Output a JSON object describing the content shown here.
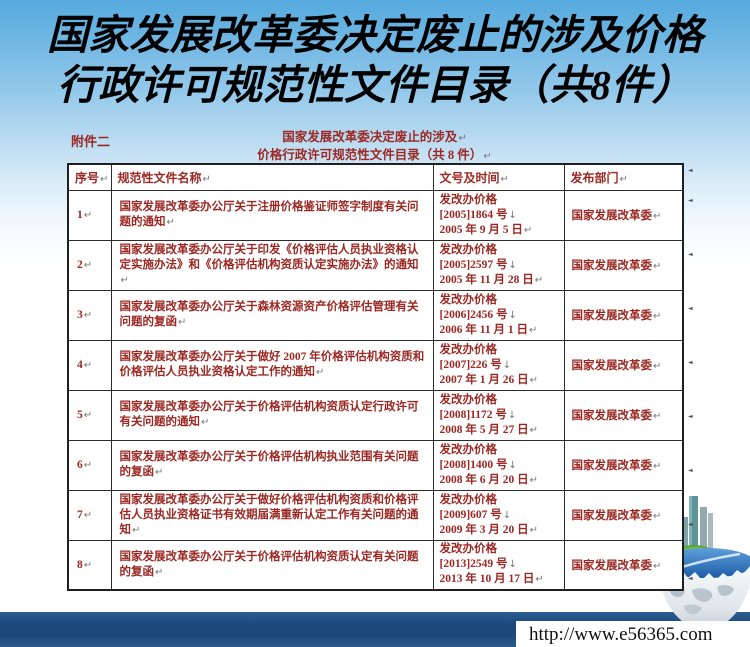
{
  "slide_title": {
    "line1": "国家发展改革委决定废止的涉及价格",
    "line2": "行政许可规范性文件目录（共8件）"
  },
  "document": {
    "attachment_label": "附件二",
    "title_line1": "国家发展改革委决定废止的涉及",
    "title_line2": "价格行政许可规范性文件目录（共 8 件）",
    "table": {
      "headers": [
        "序号",
        "规范性文件名称",
        "文号及时间",
        "发布部门"
      ],
      "rows": [
        {
          "no": "1",
          "name": "国家发展改革委办公厅关于注册价格鉴证师签字制度有关问题的通知",
          "issuer": "发改办价格",
          "doc_no": "[2005]1864 号",
          "date": "2005 年 9 月 5 日",
          "dept": "国家发展改革委"
        },
        {
          "no": "2",
          "name": "国家发展改革委办公厅关于印发《价格评估人员执业资格认定实施办法》和《价格评估机构资质认定实施办法》的通知",
          "issuer": "发改办价格",
          "doc_no": "[2005]2597 号",
          "date": "2005 年 11 月 28 日",
          "dept": "国家发展改革委"
        },
        {
          "no": "3",
          "name": "国家发展改革委办公厅关于森林资源资产价格评估管理有关问题的复函",
          "issuer": "发改办价格",
          "doc_no": "[2006]2456 号",
          "date": "2006 年 11 月 1 日",
          "dept": "国家发展改革委"
        },
        {
          "no": "4",
          "name": "国家发展改革委办公厅关于做好 2007 年价格评估机构资质和价格评估人员执业资格认定工作的通知",
          "issuer": "发改办价格",
          "doc_no": "[2007]226 号",
          "date": "2007 年 1 月 26 日",
          "dept": "国家发展改革委"
        },
        {
          "no": "5",
          "name": "国家发展改革委办公厅关于价格评估机构资质认定行政许可有关问题的通知",
          "issuer": "发改办价格",
          "doc_no": "[2008]1172 号",
          "date": "2008 年 5 月 27 日",
          "dept": "国家发展改革委"
        },
        {
          "no": "6",
          "name": "国家发展改革委办公厅关于价格评估机构执业范围有关问题的复函",
          "issuer": "发改办价格",
          "doc_no": "[2008]1400 号",
          "date": "2008 年 6 月 20 日",
          "dept": "国家发展改革委"
        },
        {
          "no": "7",
          "name": "国家发展改革委办公厅关于做好价格评估机构资质和价格评估人员执业资格证书有效期届满重新认定工作有关问题的通知",
          "issuer": "发改办价格",
          "doc_no": "[2009]607 号",
          "date": "2009 年 3 月 20 日",
          "dept": "国家发展改革委"
        },
        {
          "no": "8",
          "name": "国家发展改革委办公厅关于价格评估机构资质认定有关问题的复函",
          "issuer": "发改办价格",
          "doc_no": "[2013]2549 号",
          "date": "2013 年 10 月 17 日",
          "dept": "国家发展改革委"
        }
      ]
    }
  },
  "marks": {
    "para": "↵",
    "line_break": "↓",
    "row_end": "◄"
  },
  "footer": {
    "url": "http://www.e56365.com"
  },
  "colors": {
    "doc_text": "#9b2823",
    "title_text": "#000000",
    "sky_top": "#55aade",
    "ocean_dark": "#1d4a7e",
    "table_border": "#2b2b2b"
  }
}
